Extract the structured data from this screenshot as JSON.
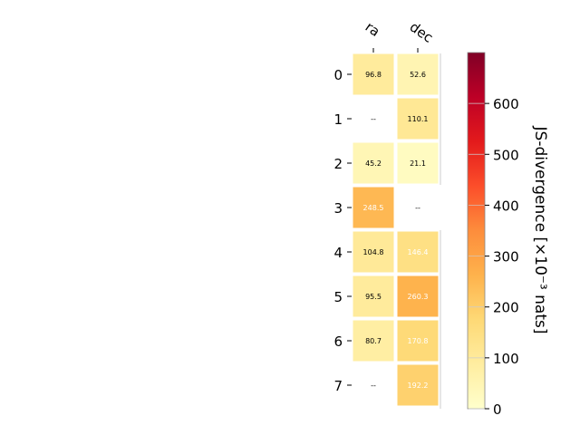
{
  "chart_data": {
    "type": "heatmap",
    "title": "",
    "columns": [
      "ra",
      "dec"
    ],
    "rows": [
      "0",
      "1",
      "2",
      "3",
      "4",
      "5",
      "6",
      "7"
    ],
    "values": [
      [
        96.8,
        52.6
      ],
      [
        null,
        110.1
      ],
      [
        45.2,
        21.1
      ],
      [
        248.5,
        null
      ],
      [
        104.8,
        146.4
      ],
      [
        95.5,
        260.3
      ],
      [
        80.7,
        170.8
      ],
      [
        null,
        192.2
      ]
    ],
    "missing_label": "--",
    "colorbar": {
      "label": "JS-divergence [×10⁻³ nats]",
      "min": 0,
      "max": 700,
      "ticks": [
        0,
        100,
        200,
        300,
        400,
        500,
        600
      ],
      "colormap": "YlOrRd"
    }
  }
}
